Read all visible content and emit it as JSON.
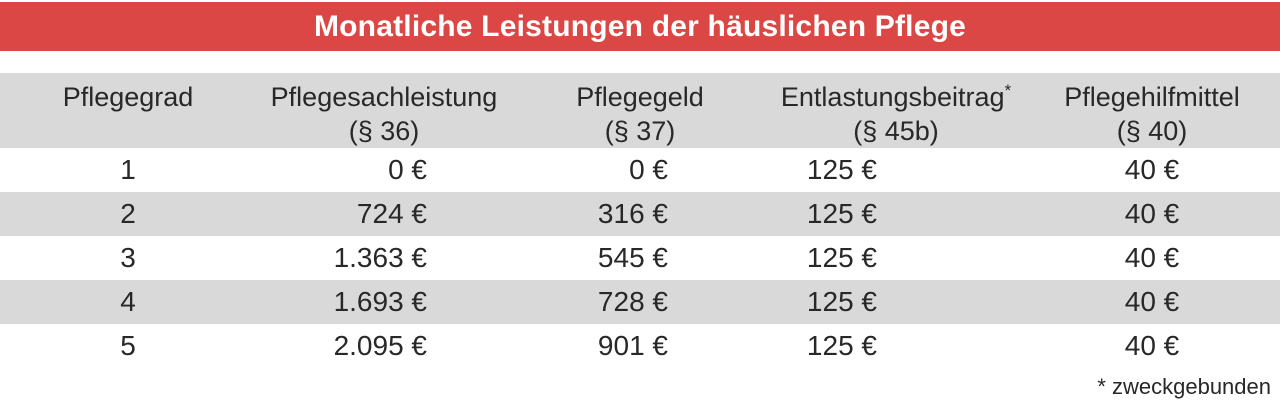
{
  "title": "Monatliche Leistungen der häuslichen Pflege",
  "colors": {
    "banner_red": "#db4744",
    "row_stripe_gray": "#d9d9d9",
    "text_dark": "#282828",
    "title_white": "#ffffff"
  },
  "chart_data": {
    "type": "table",
    "title": "Monatliche Leistungen der häuslichen Pflege",
    "columns": [
      {
        "label": "Pflegegrad",
        "sup": "",
        "paragraph": ""
      },
      {
        "label": "Pflegesachleistung",
        "sup": "",
        "paragraph": "(§ 36)"
      },
      {
        "label": "Pflegegeld",
        "sup": "",
        "paragraph": "(§ 37)"
      },
      {
        "label": "Entlastungsbeitrag",
        "sup": "*",
        "paragraph": "(§ 45b)"
      },
      {
        "label": "Pflegehilfmittel",
        "sup": "",
        "paragraph": "(§ 40)"
      }
    ],
    "rows": [
      [
        "1",
        "0 €",
        "0 €",
        "125 €",
        "40 €"
      ],
      [
        "2",
        "724 €",
        "316 €",
        "125 €",
        "40 €"
      ],
      [
        "3",
        "1.363 €",
        "545 €",
        "125 €",
        "40 €"
      ],
      [
        "4",
        "1.693 €",
        "728 €",
        "125 €",
        "40 €"
      ],
      [
        "5",
        "2.095 €",
        "901 €",
        "125 €",
        "40 €"
      ]
    ],
    "footnote": "* zweckgebunden"
  }
}
